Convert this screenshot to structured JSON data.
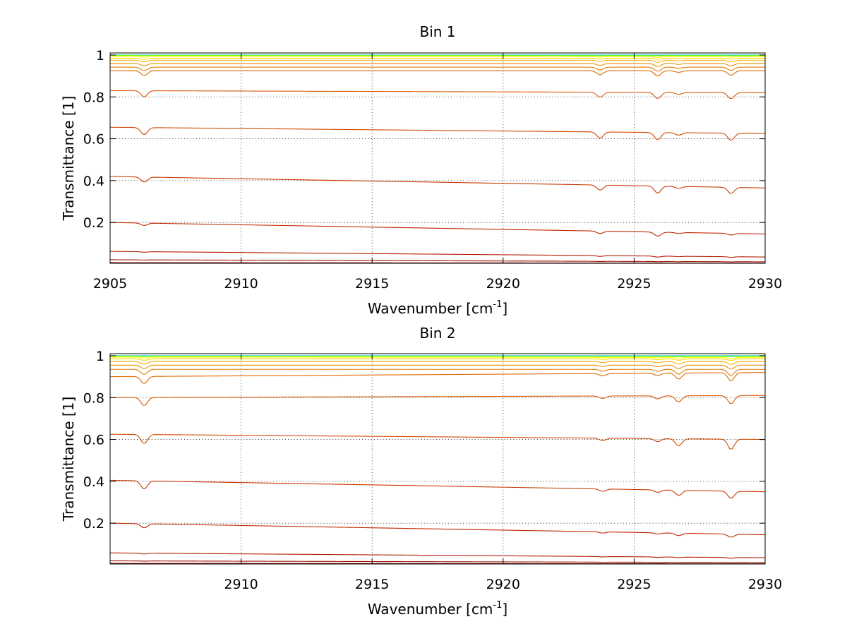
{
  "chart_data": [
    {
      "type": "line",
      "title": "Bin 1",
      "xlabel": "Wavenumber [cm",
      "xlabel_sup": "-1",
      "xlabel_end": "]",
      "ylabel": "Transmittance [1]",
      "xlim": [
        2905,
        2930
      ],
      "ylim": [
        0.005,
        1.01
      ],
      "xticks": [
        2905,
        2910,
        2915,
        2920,
        2925,
        2930
      ],
      "xtick_labels": [
        "2905",
        "2910",
        "2915",
        "2920",
        "2925",
        "2930"
      ],
      "yticks": [
        0.2,
        0.4,
        0.6,
        0.8,
        1
      ],
      "ytick_labels": [
        "0.2",
        "0.4",
        "0.6",
        "0.8",
        "1"
      ],
      "grid": true,
      "series": [
        {
          "color": "#00cccc",
          "start": 1.0,
          "end": 1.0,
          "dips": [
            0,
            0,
            0,
            0,
            0
          ]
        },
        {
          "color": "#80ff00",
          "start": 0.998,
          "end": 0.997,
          "dips": [
            0.001,
            0.001,
            0.001,
            0,
            0.001
          ]
        },
        {
          "color": "#ffff00",
          "start": 0.993,
          "end": 0.992,
          "dips": [
            0.003,
            0.002,
            0.003,
            0.001,
            0.002
          ]
        },
        {
          "color": "#ffd700",
          "start": 0.985,
          "end": 0.985,
          "dips": [
            0.005,
            0.004,
            0.006,
            0.002,
            0.005
          ]
        },
        {
          "color": "#ffb000",
          "start": 0.975,
          "end": 0.975,
          "dips": [
            0.008,
            0.006,
            0.01,
            0.003,
            0.008
          ]
        },
        {
          "color": "#f09000",
          "start": 0.96,
          "end": 0.96,
          "dips": [
            0.012,
            0.01,
            0.015,
            0.005,
            0.012
          ]
        },
        {
          "color": "#e87a00",
          "start": 0.942,
          "end": 0.942,
          "dips": [
            0.018,
            0.014,
            0.02,
            0.006,
            0.016
          ]
        },
        {
          "color": "#e06a00",
          "start": 0.925,
          "end": 0.925,
          "dips": [
            0.024,
            0.02,
            0.026,
            0.008,
            0.022
          ]
        },
        {
          "color": "#d85800",
          "start": 0.83,
          "end": 0.82,
          "dips": [
            0.03,
            0.025,
            0.03,
            0.01,
            0.03
          ]
        },
        {
          "color": "#d04800",
          "start": 0.655,
          "end": 0.625,
          "dips": [
            0.035,
            0.03,
            0.035,
            0.012,
            0.035
          ]
        },
        {
          "color": "#c83800",
          "start": 0.42,
          "end": 0.365,
          "dips": [
            0.025,
            0.025,
            0.035,
            0.01,
            0.03
          ]
        },
        {
          "color": "#c02800",
          "start": 0.2,
          "end": 0.145,
          "dips": [
            0.012,
            0.012,
            0.02,
            0.005,
            0.008
          ]
        },
        {
          "color": "#b01c00",
          "start": 0.062,
          "end": 0.035,
          "dips": [
            0.003,
            0.004,
            0.005,
            0.002,
            0.003
          ]
        },
        {
          "color": "#a01000",
          "start": 0.022,
          "end": 0.012,
          "dips": [
            0.001,
            0.001,
            0.001,
            0.001,
            0.001
          ]
        },
        {
          "color": "#800000",
          "start": 0.008,
          "end": 0.006,
          "dips": [
            0,
            0,
            0,
            0,
            0
          ]
        }
      ],
      "dip_positions": [
        2906.3,
        2923.7,
        2925.9,
        2926.7,
        2928.7
      ]
    },
    {
      "type": "line",
      "title": "Bin 2",
      "xlabel": "Wavenumber [cm",
      "xlabel_sup": "-1",
      "xlabel_end": "]",
      "ylabel": "Transmittance [1]",
      "xlim": [
        2905,
        2930
      ],
      "ylim": [
        0.005,
        1.01
      ],
      "xticks": [
        2910,
        2915,
        2920,
        2925,
        2930
      ],
      "xtick_labels": [
        "2910",
        "2915",
        "2920",
        "2925",
        "2930"
      ],
      "yticks": [
        0.2,
        0.4,
        0.6,
        0.8,
        1
      ],
      "ytick_labels": [
        "0.2",
        "0.4",
        "0.6",
        "0.8",
        "1"
      ],
      "grid": true,
      "series": [
        {
          "color": "#00cccc",
          "start": 1.0,
          "end": 1.0,
          "dips": [
            0,
            0,
            0,
            0,
            0
          ]
        },
        {
          "color": "#80ff00",
          "start": 0.998,
          "end": 0.997,
          "dips": [
            0.002,
            0.001,
            0.001,
            0.002,
            0.002
          ]
        },
        {
          "color": "#ffff00",
          "start": 0.993,
          "end": 0.992,
          "dips": [
            0.004,
            0.002,
            0.002,
            0.004,
            0.005
          ]
        },
        {
          "color": "#ffd700",
          "start": 0.985,
          "end": 0.985,
          "dips": [
            0.007,
            0.003,
            0.004,
            0.007,
            0.008
          ]
        },
        {
          "color": "#ffb000",
          "start": 0.972,
          "end": 0.972,
          "dips": [
            0.012,
            0.005,
            0.006,
            0.012,
            0.014
          ]
        },
        {
          "color": "#f09000",
          "start": 0.955,
          "end": 0.955,
          "dips": [
            0.018,
            0.007,
            0.008,
            0.018,
            0.02
          ]
        },
        {
          "color": "#e87a00",
          "start": 0.935,
          "end": 0.935,
          "dips": [
            0.025,
            0.009,
            0.01,
            0.024,
            0.03
          ]
        },
        {
          "color": "#e06a00",
          "start": 0.9,
          "end": 0.92,
          "dips": [
            0.035,
            0.012,
            0.012,
            0.03,
            0.04
          ]
        },
        {
          "color": "#d85800",
          "start": 0.8,
          "end": 0.81,
          "dips": [
            0.04,
            0.012,
            0.015,
            0.03,
            0.04
          ]
        },
        {
          "color": "#d04800",
          "start": 0.625,
          "end": 0.6,
          "dips": [
            0.045,
            0.012,
            0.015,
            0.035,
            0.05
          ]
        },
        {
          "color": "#c83800",
          "start": 0.405,
          "end": 0.35,
          "dips": [
            0.04,
            0.012,
            0.012,
            0.025,
            0.035
          ]
        },
        {
          "color": "#c02800",
          "start": 0.2,
          "end": 0.145,
          "dips": [
            0.02,
            0.006,
            0.006,
            0.012,
            0.015
          ]
        },
        {
          "color": "#b01c00",
          "start": 0.058,
          "end": 0.035,
          "dips": [
            0.004,
            0.002,
            0.002,
            0.003,
            0.004
          ]
        },
        {
          "color": "#a01000",
          "start": 0.02,
          "end": 0.012,
          "dips": [
            0.001,
            0.001,
            0.001,
            0.001,
            0.001
          ]
        },
        {
          "color": "#800000",
          "start": 0.008,
          "end": 0.006,
          "dips": [
            0,
            0,
            0,
            0,
            0
          ]
        }
      ],
      "dip_positions": [
        2906.3,
        2923.8,
        2925.9,
        2926.7,
        2928.7
      ]
    }
  ]
}
